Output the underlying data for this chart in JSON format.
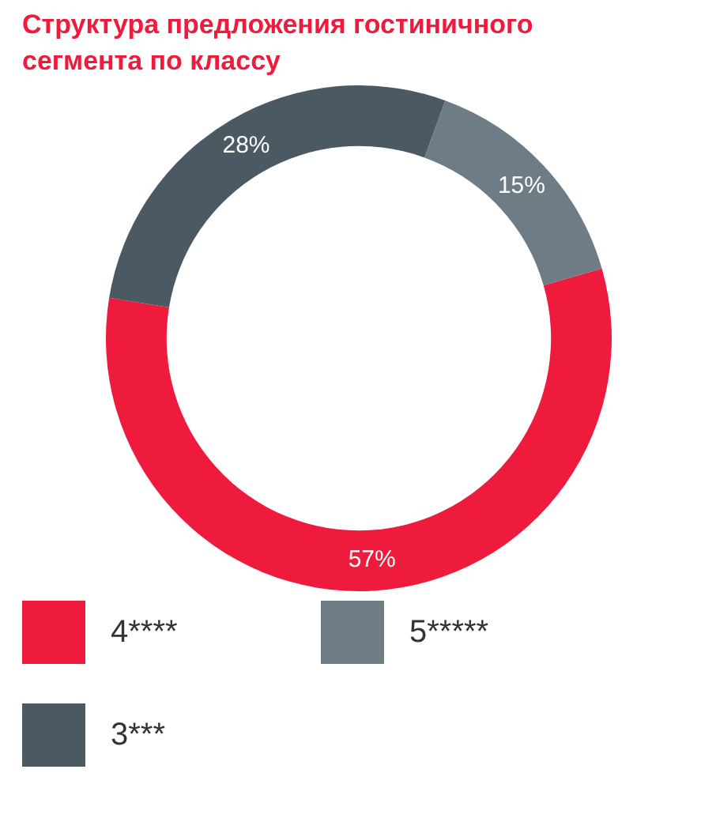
{
  "chart_data": {
    "type": "donut",
    "title": "Структура предложения гостиничного сегмента по классу",
    "categories": [
      "4****",
      "3***",
      "5*****"
    ],
    "values": [
      57,
      28,
      15
    ],
    "colors": [
      "#ee1b3c",
      "#4b5962",
      "#6e7c85"
    ],
    "value_labels": [
      "57%",
      "28%",
      "15%"
    ],
    "legend": "bottom"
  }
}
